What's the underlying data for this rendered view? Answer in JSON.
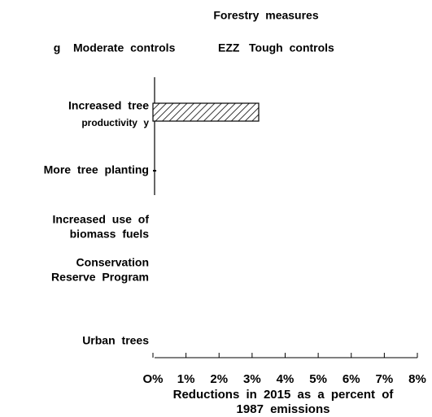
{
  "chart_data": {
    "type": "bar",
    "orientation": "horizontal",
    "title": "Forestry measures",
    "categories": [
      [
        "Increased tree",
        "productivity y"
      ],
      [
        "More tree planting"
      ],
      [
        "Increased use of",
        "biomass fuels"
      ],
      [
        "Conservation",
        "Reserve Program"
      ],
      [
        "Urban trees"
      ]
    ],
    "series": [
      {
        "name": "Moderate controls",
        "marker": "g",
        "color": "#000000",
        "values": [
          null,
          0.1,
          null,
          null,
          null
        ]
      },
      {
        "name": "Tough controls",
        "marker": "EZZ",
        "color": "#000000",
        "pattern": "hatch",
        "values": [
          3.2,
          null,
          null,
          null,
          null
        ]
      }
    ],
    "xlim": [
      0,
      8
    ],
    "xticks": [
      {
        "value": 0,
        "label": "O%"
      },
      {
        "value": 1,
        "label": "1%"
      },
      {
        "value": 2,
        "label": "2%"
      },
      {
        "value": 3,
        "label": "3%"
      },
      {
        "value": 4,
        "label": "4%"
      },
      {
        "value": 5,
        "label": "5%"
      },
      {
        "value": 6,
        "label": "6%"
      },
      {
        "value": 7,
        "label": "7%"
      },
      {
        "value": 8,
        "label": "8%"
      }
    ],
    "xlabel": [
      "Reductions in 2015 as a percent of",
      "1987 emissions"
    ]
  }
}
